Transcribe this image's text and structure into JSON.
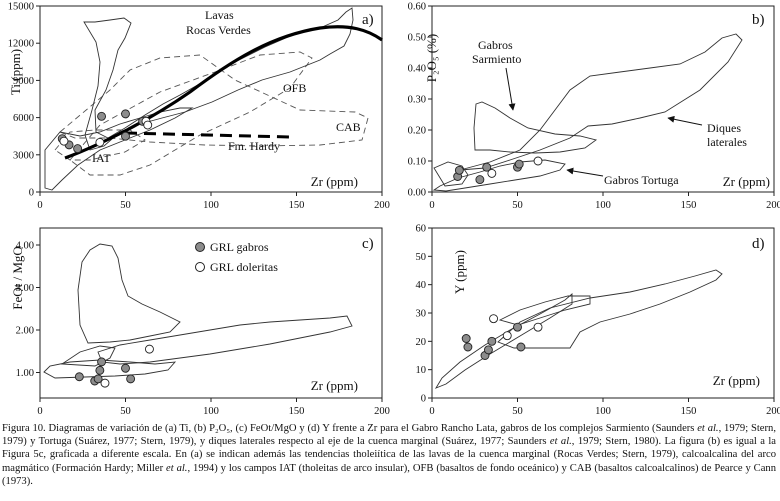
{
  "panels": [
    {
      "id": "a",
      "tag": "a)",
      "ylabel": "Ti (ppm)",
      "xlabel": "Zr (ppm)",
      "yticks": [
        "0",
        "3000",
        "6000",
        "9000",
        "12000",
        "15000"
      ],
      "xticks": [
        "0",
        "50",
        "100",
        "150",
        "200"
      ]
    },
    {
      "id": "b",
      "tag": "b)",
      "ylabel": "P₂O₅ (%)",
      "xlabel": "Zr (ppm)",
      "yticks": [
        "0.00",
        "0.10",
        "0.20",
        "0.30",
        "0.40",
        "0.50",
        "0.60"
      ],
      "xticks": [
        "0",
        "50",
        "100",
        "150",
        "200"
      ]
    },
    {
      "id": "c",
      "tag": "c)",
      "ylabel": "FeOt / MgO",
      "xlabel": "Zr (ppm)",
      "yticks": [
        "1.00",
        "2.00",
        "3.00",
        "4.00"
      ],
      "xticks": [
        "0",
        "50",
        "100",
        "150",
        "200"
      ]
    },
    {
      "id": "d",
      "tag": "d)",
      "ylabel": "Y (ppm)",
      "xlabel": "Zr (ppm)",
      "yticks": [
        "0",
        "10",
        "20",
        "30",
        "40",
        "50",
        "60"
      ],
      "xticks": [
        "0",
        "50",
        "100",
        "150",
        "200"
      ]
    }
  ],
  "annotations": {
    "a": {
      "lavas1": "Lavas",
      "lavas2": "Rocas Verdes",
      "ofb": "OFB",
      "cab": "CAB",
      "iat": "IAT",
      "hardy": "Fm. Hardy"
    },
    "b": {
      "gabros1": "Gabros",
      "gabros2": "Sarmiento",
      "diques1": "Diques",
      "diques2": "laterales",
      "tortuga": "Gabros Tortuga"
    }
  },
  "legend": {
    "gabros": "GRL gabros",
    "doleritas": "GRL doleritas",
    "gabros_color": "#8c8c8c",
    "doleritas_color": "#ffffff"
  },
  "chart_data": [
    {
      "panel": "a",
      "type": "scatter",
      "title": "",
      "xlabel": "Zr (ppm)",
      "ylabel": "Ti (ppm)",
      "xlim": [
        0,
        200
      ],
      "ylim": [
        0,
        15000
      ],
      "series": [
        {
          "name": "GRL gabros",
          "points": [
            [
              13,
              4300
            ],
            [
              17,
              3800
            ],
            [
              22,
              3500
            ],
            [
              36,
              6100
            ],
            [
              50,
              6300
            ],
            [
              50,
              4500
            ],
            [
              60,
              5700
            ]
          ]
        },
        {
          "name": "GRL doleritas",
          "points": [
            [
              14,
              4100
            ],
            [
              35,
              4000
            ],
            [
              62,
              5700
            ],
            [
              63,
              5400
            ]
          ]
        }
      ]
    },
    {
      "panel": "b",
      "type": "scatter",
      "title": "",
      "xlabel": "Zr (ppm)",
      "ylabel": "P2O5 (%)",
      "xlim": [
        0,
        200
      ],
      "ylim": [
        0,
        0.6
      ],
      "series": [
        {
          "name": "GRL gabros",
          "points": [
            [
              15,
              0.05
            ],
            [
              16,
              0.07
            ],
            [
              28,
              0.04
            ],
            [
              32,
              0.08
            ],
            [
              50,
              0.08
            ],
            [
              51,
              0.09
            ]
          ]
        },
        {
          "name": "GRL doleritas",
          "points": [
            [
              35,
              0.06
            ],
            [
              62,
              0.1
            ]
          ]
        }
      ]
    },
    {
      "panel": "c",
      "type": "scatter",
      "title": "",
      "xlabel": "Zr (ppm)",
      "ylabel": "FeOt/MgO",
      "xlim": [
        0,
        200
      ],
      "ylim": [
        0.4,
        4.4
      ],
      "series": [
        {
          "name": "GRL gabros",
          "points": [
            [
              23,
              0.9
            ],
            [
              32,
              0.8
            ],
            [
              34,
              0.85
            ],
            [
              35,
              1.05
            ],
            [
              36,
              1.25
            ],
            [
              50,
              1.1
            ],
            [
              53,
              0.85
            ]
          ]
        },
        {
          "name": "GRL doleritas",
          "points": [
            [
              38,
              0.75
            ],
            [
              64,
              1.55
            ]
          ]
        }
      ]
    },
    {
      "panel": "d",
      "type": "scatter",
      "title": "",
      "xlabel": "Zr (ppm)",
      "ylabel": "Y (ppm)",
      "xlim": [
        0,
        200
      ],
      "ylim": [
        0,
        60
      ],
      "series": [
        {
          "name": "GRL gabros",
          "points": [
            [
              20,
              21
            ],
            [
              21,
              18
            ],
            [
              31,
              15
            ],
            [
              33,
              17
            ],
            [
              35,
              20
            ],
            [
              50,
              25
            ],
            [
              52,
              18
            ]
          ]
        },
        {
          "name": "GRL doleritas",
          "points": [
            [
              36,
              28
            ],
            [
              44,
              22
            ],
            [
              62,
              25
            ]
          ]
        }
      ]
    }
  ],
  "caption": {
    "text1": "Figura 10. Diagramas de variación de (a) Ti, (b) P₂O₅, (c) FeOt/MgO y (d) Y frente a Zr para el Gabro Rancho Lata, gabros de los complejos Sarmiento (Saunders ",
    "etal1": "et al.",
    "text2": ", 1979; Stern, 1979) y Tortuga (Suárez, 1977; Stern, 1979), y diques laterales respecto al eje de la cuenca marginal (Suárez, 1977; Saunders ",
    "etal2": "et al.",
    "text3": ", 1979; Stern, 1980). La figura (b) es igual a la Figura 5c, graficada a diferente escala. En (a) se indican además las tendencias tholeiítica de las lavas de la cuenca marginal (Rocas Verdes; Stern, 1979), calcoalcalina del arco magmático (Formación Hardy; Miller ",
    "etal3": "et al.",
    "text4": ", 1994) y los campos IAT (tholeitas de arco insular), OFB (basaltos de fondo oceánico) y CAB (basaltos calcoalcalinos) de Pearce y Cann (1973)."
  }
}
